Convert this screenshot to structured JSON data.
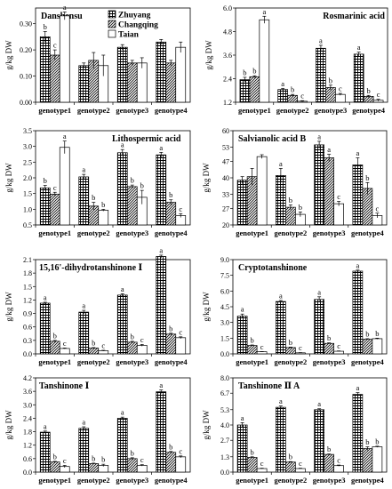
{
  "figure": {
    "legend": [
      {
        "name": "Zhuyang",
        "pattern": "grid"
      },
      {
        "name": "Changqing",
        "pattern": "diag"
      },
      {
        "name": "Taian",
        "pattern": "white"
      }
    ]
  },
  "chart_data": [
    {
      "type": "bar",
      "title": "Danshensu",
      "ylabel": "g/kg DW",
      "categories": [
        "genotype1",
        "genotype2",
        "genotype3",
        "genotype4"
      ],
      "yticks": [
        "0.00",
        "0.10",
        "0.20",
        "0.30"
      ],
      "ylim": [
        0,
        0.36
      ],
      "series": [
        {
          "name": "Zhuyang",
          "values": [
            0.25,
            0.14,
            0.21,
            0.23
          ],
          "errors": [
            0.02,
            0.01,
            0.01,
            0.01
          ],
          "letters": [
            "b",
            "",
            "",
            ""
          ]
        },
        {
          "name": "Changqing",
          "values": [
            0.18,
            0.16,
            0.15,
            0.15
          ],
          "errors": [
            0.02,
            0.03,
            0.01,
            0.01
          ],
          "letters": [
            "c",
            "",
            "",
            ""
          ]
        },
        {
          "name": "Taian",
          "values": [
            0.33,
            0.14,
            0.15,
            0.21
          ],
          "errors": [
            0.015,
            0.04,
            0.02,
            0.02
          ],
          "letters": [
            "a",
            "",
            "",
            ""
          ]
        }
      ]
    },
    {
      "type": "bar",
      "title": "Rosmarinic acid",
      "ylabel": "g/kg DW",
      "categories": [
        "genotype1",
        "genotype2",
        "genotype3",
        "genotype4"
      ],
      "yticks": [
        "1.2",
        "2.4",
        "3.6",
        "4.8",
        "6.0"
      ],
      "ylim": [
        1.2,
        6.0
      ],
      "series": [
        {
          "name": "Zhuyang",
          "values": [
            2.35,
            1.85,
            3.95,
            3.65
          ],
          "errors": [
            0.12,
            0.06,
            0.15,
            0.1
          ],
          "letters": [
            "b",
            "a",
            "a",
            "a"
          ]
        },
        {
          "name": "Changqing",
          "values": [
            2.5,
            1.55,
            1.95,
            1.5
          ],
          "errors": [
            0.05,
            0.05,
            0.12,
            0.05
          ],
          "letters": [
            "b",
            "b",
            "b",
            "b"
          ]
        },
        {
          "name": "Taian",
          "values": [
            5.4,
            1.25,
            1.6,
            1.3
          ],
          "errors": [
            0.18,
            0.03,
            0.05,
            0.05
          ],
          "letters": [
            "a",
            "c",
            "c",
            "c"
          ]
        }
      ]
    },
    {
      "type": "bar",
      "title": "Lithospermic acid",
      "ylabel": "g/kg DW",
      "categories": [
        "genotype1",
        "genotype2",
        "genotype3",
        "genotype4"
      ],
      "yticks": [
        "0.5",
        "1.0",
        "1.5",
        "2.0",
        "2.5",
        "3.0",
        "3.5"
      ],
      "ylim": [
        0.5,
        3.5
      ],
      "series": [
        {
          "name": "Zhuyang",
          "values": [
            1.68,
            2.03,
            2.8,
            2.73
          ],
          "errors": [
            0.08,
            0.08,
            0.1,
            0.08
          ],
          "letters": [
            "b",
            "a",
            "a",
            "a"
          ]
        },
        {
          "name": "Changqing",
          "values": [
            1.48,
            1.1,
            1.72,
            1.22
          ],
          "errors": [
            0.06,
            0.12,
            0.05,
            0.08
          ],
          "letters": [
            "c",
            "b",
            "b",
            "b"
          ]
        },
        {
          "name": "Taian",
          "values": [
            2.97,
            0.97,
            1.38,
            0.8
          ],
          "errors": [
            0.2,
            0.03,
            0.22,
            0.06
          ],
          "letters": [
            "a",
            "b",
            "b",
            "c"
          ]
        }
      ]
    },
    {
      "type": "bar",
      "title": "Salvianolic acid B",
      "ylabel": "g/kg DW",
      "categories": [
        "genotype1",
        "genotype2",
        "genotype3",
        "genotype4"
      ],
      "yticks": [
        "20",
        "27",
        "33",
        "40",
        "47",
        "53",
        "60"
      ],
      "ylim": [
        20,
        60
      ],
      "series": [
        {
          "name": "Zhuyang",
          "values": [
            39,
            41,
            54,
            45.5
          ],
          "errors": [
            1.5,
            3,
            1.5,
            3
          ],
          "letters": [
            "",
            "a",
            "a",
            "a"
          ]
        },
        {
          "name": "Changqing",
          "values": [
            40.5,
            27.5,
            48.5,
            35.5
          ],
          "errors": [
            3.5,
            1,
            1.5,
            2.5
          ],
          "letters": [
            "",
            "b",
            "a",
            "b"
          ]
        },
        {
          "name": "Taian",
          "values": [
            49,
            24.5,
            29,
            24
          ],
          "errors": [
            0.8,
            1,
            1,
            1
          ],
          "letters": [
            "",
            "b",
            "c",
            "c"
          ]
        }
      ]
    },
    {
      "type": "bar",
      "title": "15,16'-dihydrotanshinone Ⅰ",
      "ylabel": "g/kg DW",
      "categories": [
        "genotype1",
        "genotype2",
        "genotype3",
        "genotype4"
      ],
      "yticks": [
        "0.0",
        "0.3",
        "0.6",
        "0.9",
        "1.2",
        "1.5",
        "1.8",
        "2.1"
      ],
      "ylim": [
        0,
        2.1
      ],
      "series": [
        {
          "name": "Zhuyang",
          "values": [
            1.13,
            0.93,
            1.31,
            2.17
          ],
          "errors": [
            0.02,
            0.04,
            0.03,
            0.03
          ],
          "letters": [
            "a",
            "a",
            "a",
            "a"
          ]
        },
        {
          "name": "Changqing",
          "values": [
            0.28,
            0.13,
            0.26,
            0.44
          ],
          "errors": [
            0.02,
            0.01,
            0.02,
            0.02
          ],
          "letters": [
            "b",
            "b",
            "b",
            "b"
          ]
        },
        {
          "name": "Taian",
          "values": [
            0.12,
            0.07,
            0.19,
            0.36
          ],
          "errors": [
            0.01,
            0.01,
            0.02,
            0.02
          ],
          "letters": [
            "c",
            "c",
            "c",
            "c"
          ]
        }
      ]
    },
    {
      "type": "bar",
      "title": "Cryptotanshinone",
      "ylabel": "g/kg DW",
      "categories": [
        "genotype1",
        "genotype2",
        "genotype3",
        "genotype4"
      ],
      "yticks": [
        "0.0",
        "1.5",
        "3.0",
        "4.5",
        "6.0",
        "7.5",
        "9.0"
      ],
      "ylim": [
        0,
        9
      ],
      "series": [
        {
          "name": "Zhuyang",
          "values": [
            3.6,
            5.0,
            5.2,
            7.9
          ],
          "errors": [
            0.2,
            0.1,
            0.25,
            0.1
          ],
          "letters": [
            "a",
            "a",
            "a",
            "a"
          ]
        },
        {
          "name": "Changqing",
          "values": [
            0.8,
            0.6,
            1.0,
            1.4
          ],
          "errors": [
            0.05,
            0.05,
            0.05,
            0.05
          ],
          "letters": [
            "b",
            "b",
            "b",
            "b"
          ]
        },
        {
          "name": "Taian",
          "values": [
            0.2,
            0.1,
            0.25,
            1.45
          ],
          "errors": [
            0.02,
            0.02,
            0.03,
            0.05
          ],
          "letters": [
            "c",
            "c",
            "c",
            "b"
          ]
        }
      ]
    },
    {
      "type": "bar",
      "title": "Tanshinone Ⅰ",
      "ylabel": "g/kg DW",
      "categories": [
        "genotype1",
        "genotype2",
        "genotype3",
        "genotype4"
      ],
      "yticks": [
        "0.0",
        "0.6",
        "1.2",
        "1.8",
        "2.4",
        "3.0",
        "3.6",
        "4.2"
      ],
      "ylim": [
        0,
        4.2
      ],
      "series": [
        {
          "name": "Zhuyang",
          "values": [
            1.78,
            1.95,
            2.4,
            3.58
          ],
          "errors": [
            0.05,
            0.07,
            0.05,
            0.08
          ],
          "letters": [
            "a",
            "a",
            "a",
            "a"
          ]
        },
        {
          "name": "Changqing",
          "values": [
            0.45,
            0.38,
            0.6,
            0.88
          ],
          "errors": [
            0.03,
            0.02,
            0.04,
            0.04
          ],
          "letters": [
            "b",
            "b",
            "b",
            "b"
          ]
        },
        {
          "name": "Taian",
          "values": [
            0.25,
            0.3,
            0.3,
            0.68
          ],
          "errors": [
            0.05,
            0.05,
            0.03,
            0.04
          ],
          "letters": [
            "c",
            "b",
            "c",
            "c"
          ]
        }
      ]
    },
    {
      "type": "bar",
      "title": "Tanshinone Ⅱ A",
      "ylabel": "g/kg DW",
      "categories": [
        "genotype1",
        "genotype2",
        "genotype3",
        "genotype4"
      ],
      "yticks": [
        "0.0",
        "1.3",
        "2.7",
        "4.0",
        "5.3",
        "6.7",
        "8.0"
      ],
      "ylim": [
        0,
        8
      ],
      "series": [
        {
          "name": "Zhuyang",
          "values": [
            4.0,
            5.5,
            5.3,
            6.6
          ],
          "errors": [
            0.2,
            0.12,
            0.08,
            0.15
          ],
          "letters": [
            "a",
            "a",
            "a",
            "a"
          ]
        },
        {
          "name": "Changqing",
          "values": [
            1.25,
            0.85,
            1.5,
            2.0
          ],
          "errors": [
            0.05,
            0.04,
            0.04,
            0.15
          ],
          "letters": [
            "b",
            "b",
            "b",
            "b"
          ]
        },
        {
          "name": "Taian",
          "values": [
            0.3,
            0.3,
            0.55,
            2.15
          ],
          "errors": [
            0.03,
            0.03,
            0.05,
            0.05
          ],
          "letters": [
            "c",
            "c",
            "c",
            "b"
          ]
        }
      ]
    }
  ]
}
